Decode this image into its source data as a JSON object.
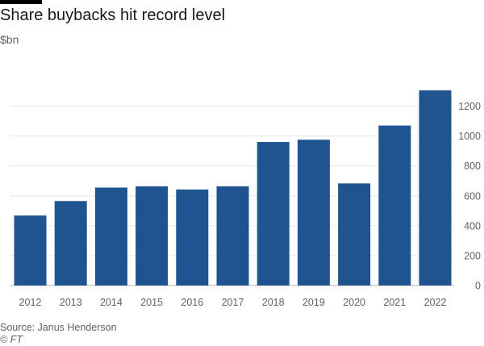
{
  "chart_data": {
    "type": "bar",
    "title": "Share buybacks hit record level",
    "subtitle": "$bn",
    "categories": [
      "2012",
      "2013",
      "2014",
      "2015",
      "2016",
      "2017",
      "2018",
      "2019",
      "2020",
      "2021",
      "2022"
    ],
    "values": [
      468,
      565,
      655,
      663,
      642,
      663,
      960,
      975,
      683,
      1070,
      1305
    ],
    "ylim": [
      0,
      1300
    ],
    "yticks": [
      0,
      200,
      400,
      600,
      800,
      1000,
      1200
    ],
    "y_axis_position": "right",
    "grid": true,
    "bar_color": "#1e5591",
    "source": "Source: Janus Henderson",
    "credit": "© FT"
  }
}
